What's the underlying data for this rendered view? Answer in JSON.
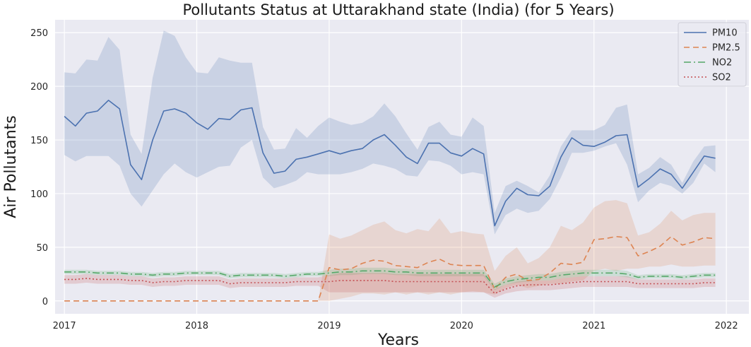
{
  "chart_data": {
    "type": "line",
    "title": "Pollutants Status at Uttarakhand state (India)  (for 5 Years)",
    "xlabel": "Years",
    "ylabel": "Air Pollutants",
    "xlim": [
      2016.93,
      2022.17
    ],
    "ylim": [
      -12,
      262
    ],
    "xticks": [
      2017,
      2018,
      2019,
      2020,
      2021,
      2022
    ],
    "yticks": [
      0,
      50,
      100,
      150,
      200,
      250
    ],
    "grid": true,
    "legend_position": "top-right",
    "x": [
      2017.0,
      2017.083,
      2017.167,
      2017.25,
      2017.333,
      2017.417,
      2017.5,
      2017.583,
      2017.667,
      2017.75,
      2017.833,
      2017.917,
      2018.0,
      2018.083,
      2018.167,
      2018.25,
      2018.333,
      2018.417,
      2018.5,
      2018.583,
      2018.667,
      2018.75,
      2018.833,
      2018.917,
      2019.0,
      2019.083,
      2019.167,
      2019.25,
      2019.333,
      2019.417,
      2019.5,
      2019.583,
      2019.667,
      2019.75,
      2019.833,
      2019.917,
      2020.0,
      2020.083,
      2020.167,
      2020.25,
      2020.333,
      2020.417,
      2020.5,
      2020.583,
      2020.667,
      2020.75,
      2020.833,
      2020.917,
      2021.0,
      2021.083,
      2021.167,
      2021.25,
      2021.333,
      2021.417,
      2021.5,
      2021.583,
      2021.667,
      2021.75,
      2021.833,
      2021.917
    ],
    "series": [
      {
        "name": "PM10",
        "color": "#4c72b0",
        "dash": "solid",
        "values": [
          172,
          163,
          175,
          177,
          187,
          179,
          127,
          113,
          150,
          177,
          179,
          175,
          166,
          160,
          170,
          169,
          178,
          180,
          138,
          119,
          121,
          132,
          134,
          137,
          140,
          137,
          140,
          142,
          150,
          155,
          145,
          134,
          128,
          147,
          147,
          138,
          135,
          142,
          137,
          70,
          93,
          105,
          99,
          98,
          107,
          134,
          152,
          145,
          144,
          148,
          154,
          155,
          106,
          114,
          123,
          118,
          105,
          120,
          135,
          133
        ],
        "lower": [
          136,
          130,
          135,
          135,
          135,
          126,
          100,
          88,
          103,
          118,
          128,
          120,
          115,
          120,
          125,
          126,
          143,
          150,
          115,
          105,
          108,
          112,
          120,
          118,
          118,
          118,
          120,
          123,
          128,
          126,
          123,
          117,
          116,
          131,
          130,
          126,
          118,
          120,
          118,
          62,
          80,
          86,
          82,
          84,
          95,
          115,
          138,
          138,
          140,
          144,
          147,
          127,
          92,
          103,
          110,
          107,
          100,
          110,
          128,
          120
        ],
        "upper": [
          213,
          212,
          225,
          224,
          246,
          234,
          155,
          137,
          208,
          252,
          247,
          227,
          213,
          212,
          227,
          224,
          222,
          222,
          162,
          141,
          142,
          161,
          152,
          163,
          171,
          167,
          164,
          166,
          172,
          184,
          172,
          156,
          141,
          162,
          167,
          155,
          153,
          171,
          163,
          82,
          107,
          112,
          107,
          101,
          117,
          144,
          159,
          159,
          159,
          164,
          180,
          183,
          118,
          124,
          134,
          127,
          110,
          130,
          144,
          145
        ]
      },
      {
        "name": "PM2.5",
        "color": "#dd8452",
        "dash": "8,5",
        "values": [
          0,
          0,
          0,
          0,
          0,
          0,
          0,
          0,
          0,
          0,
          0,
          0,
          0,
          0,
          0,
          0,
          0,
          0,
          0,
          0,
          0,
          0,
          0,
          0,
          31,
          29,
          30,
          35,
          38,
          37,
          33,
          32,
          31,
          36,
          39,
          34,
          33,
          33,
          33,
          11,
          22,
          25,
          19,
          20,
          26,
          35,
          34,
          36,
          57,
          58,
          60,
          59,
          42,
          46,
          51,
          60,
          52,
          55,
          59,
          58
        ],
        "lower": [
          0,
          0,
          0,
          0,
          0,
          0,
          0,
          0,
          0,
          0,
          0,
          0,
          0,
          0,
          0,
          0,
          0,
          0,
          0,
          0,
          0,
          0,
          0,
          0,
          0,
          2,
          4,
          7,
          7,
          6,
          8,
          6,
          8,
          6,
          8,
          6,
          8,
          9,
          8,
          6,
          12,
          15,
          12,
          14,
          16,
          16,
          18,
          19,
          28,
          30,
          28,
          30,
          30,
          32,
          32,
          34,
          32,
          32,
          33,
          33
        ],
        "upper": [
          0,
          0,
          0,
          0,
          0,
          0,
          0,
          0,
          0,
          0,
          0,
          0,
          0,
          0,
          0,
          0,
          0,
          0,
          0,
          0,
          0,
          0,
          0,
          0,
          62,
          58,
          61,
          66,
          71,
          74,
          66,
          63,
          67,
          65,
          77,
          63,
          65,
          63,
          62,
          28,
          42,
          50,
          35,
          40,
          50,
          70,
          66,
          73,
          87,
          93,
          94,
          91,
          61,
          64,
          72,
          84,
          75,
          80,
          82,
          82
        ]
      },
      {
        "name": "NO2",
        "color": "#55a868",
        "dash": "10,4,2,4",
        "values": [
          27,
          27,
          27,
          26,
          26,
          26,
          25,
          25,
          24,
          25,
          25,
          26,
          26,
          26,
          26,
          23,
          24,
          24,
          24,
          24,
          23,
          24,
          25,
          25,
          26,
          27,
          27,
          28,
          28,
          28,
          27,
          27,
          26,
          26,
          26,
          26,
          26,
          26,
          26,
          13,
          18,
          20,
          21,
          22,
          22,
          24,
          25,
          26,
          26,
          26,
          26,
          25,
          22,
          23,
          23,
          23,
          22,
          23,
          24,
          24
        ],
        "lower": [
          25,
          25,
          25,
          24,
          24,
          24,
          23,
          23,
          22,
          23,
          23,
          24,
          24,
          24,
          24,
          21,
          22,
          22,
          22,
          22,
          21,
          22,
          23,
          23,
          23,
          24,
          24,
          25,
          25,
          25,
          24,
          24,
          23,
          23,
          23,
          23,
          23,
          23,
          23,
          10,
          15,
          17,
          18,
          19,
          19,
          21,
          22,
          23,
          23,
          23,
          23,
          22,
          20,
          21,
          21,
          21,
          20,
          21,
          22,
          22
        ],
        "upper": [
          29,
          29,
          29,
          28,
          28,
          28,
          27,
          27,
          26,
          27,
          27,
          28,
          28,
          28,
          28,
          25,
          26,
          26,
          26,
          26,
          25,
          26,
          27,
          27,
          29,
          30,
          30,
          31,
          31,
          31,
          30,
          30,
          29,
          29,
          29,
          29,
          29,
          29,
          29,
          16,
          21,
          23,
          24,
          25,
          25,
          27,
          28,
          29,
          29,
          29,
          29,
          28,
          24,
          25,
          25,
          25,
          24,
          25,
          26,
          26
        ]
      },
      {
        "name": "SO2",
        "color": "#c44e52",
        "dash": "2,3",
        "values": [
          20,
          20,
          21,
          20,
          20,
          20,
          19,
          19,
          17,
          18,
          18,
          19,
          19,
          19,
          19,
          16,
          17,
          17,
          17,
          17,
          17,
          18,
          18,
          18,
          18,
          19,
          19,
          19,
          19,
          19,
          18,
          18,
          18,
          18,
          18,
          18,
          18,
          18,
          18,
          7,
          11,
          14,
          15,
          15,
          15,
          16,
          17,
          18,
          18,
          18,
          18,
          18,
          16,
          16,
          16,
          16,
          16,
          16,
          17,
          17
        ],
        "lower": [
          16,
          16,
          17,
          16,
          16,
          16,
          15,
          15,
          13,
          14,
          14,
          15,
          15,
          15,
          15,
          12,
          13,
          13,
          13,
          13,
          13,
          14,
          14,
          14,
          8,
          8,
          8,
          8,
          8,
          8,
          8,
          8,
          8,
          8,
          8,
          8,
          8,
          8,
          8,
          3,
          7,
          9,
          10,
          10,
          10,
          11,
          12,
          13,
          13,
          13,
          13,
          13,
          12,
          12,
          12,
          12,
          12,
          12,
          13,
          13
        ],
        "upper": [
          24,
          24,
          25,
          24,
          24,
          24,
          23,
          23,
          21,
          22,
          22,
          23,
          23,
          23,
          23,
          20,
          21,
          21,
          21,
          21,
          21,
          22,
          22,
          22,
          24,
          26,
          26,
          26,
          26,
          26,
          25,
          25,
          25,
          25,
          25,
          25,
          25,
          25,
          25,
          11,
          15,
          18,
          19,
          19,
          19,
          21,
          22,
          23,
          23,
          23,
          23,
          23,
          20,
          20,
          20,
          20,
          20,
          20,
          21,
          21
        ]
      }
    ]
  }
}
